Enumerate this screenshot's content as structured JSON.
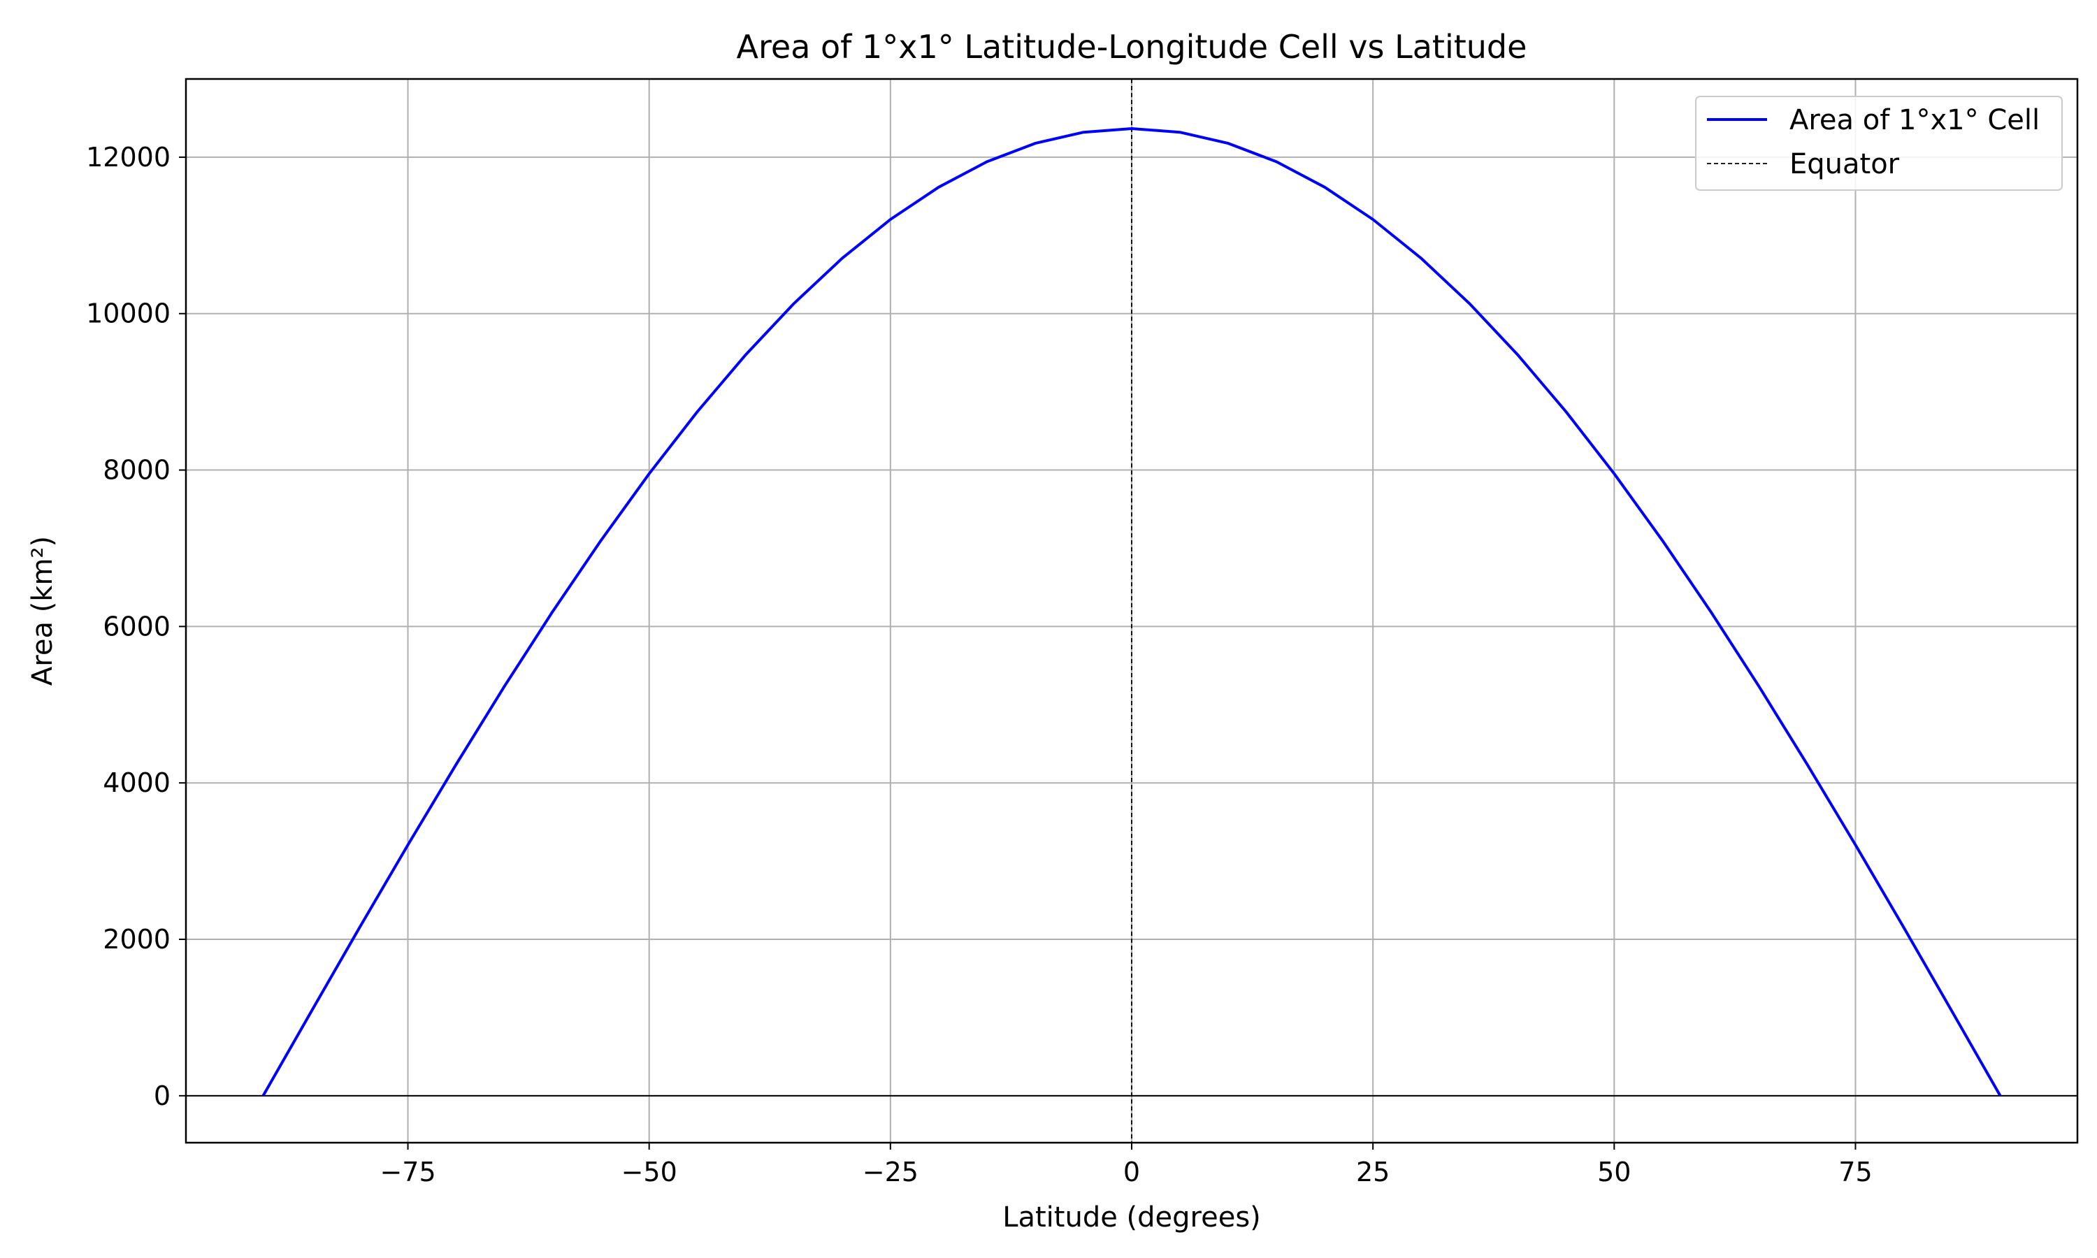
{
  "chart_data": {
    "type": "line",
    "title": "Area of 1°x1° Latitude-Longitude Cell vs Latitude",
    "xlabel": "Latitude (degrees)",
    "ylabel": "Area (km²)",
    "xlim": [
      -98,
      98
    ],
    "ylim": [
      -600,
      13000
    ],
    "x_ticks": [
      -75,
      -50,
      -25,
      0,
      25,
      50,
      75
    ],
    "x_tick_labels": [
      "−75",
      "−50",
      "−25",
      "0",
      "25",
      "50",
      "75"
    ],
    "y_ticks": [
      0,
      2000,
      4000,
      6000,
      8000,
      10000,
      12000
    ],
    "y_tick_labels": [
      "0",
      "2000",
      "4000",
      "6000",
      "8000",
      "10000",
      "12000"
    ],
    "grid": true,
    "legend_position": "top-right",
    "series": [
      {
        "name": "Area of 1°x1° Cell",
        "color": "#0000ff",
        "style": "solid",
        "x": [
          -90,
          -85,
          -80,
          -75,
          -70,
          -65,
          -60,
          -55,
          -50,
          -45,
          -40,
          -35,
          -30,
          -25,
          -20,
          -15,
          -10,
          -5,
          0,
          5,
          10,
          15,
          20,
          25,
          30,
          35,
          40,
          45,
          50,
          55,
          60,
          65,
          70,
          75,
          80,
          85,
          90
        ],
        "y": [
          0,
          1080,
          2152,
          3207,
          4237,
          5234,
          6190,
          7099,
          7953,
          8747,
          9474,
          10129,
          10707,
          11204,
          11617,
          11942,
          12177,
          12319,
          12366,
          12319,
          12177,
          11942,
          11617,
          11204,
          10707,
          10129,
          9474,
          8747,
          7953,
          7099,
          6190,
          5234,
          4237,
          3207,
          2152,
          1080,
          0
        ]
      }
    ],
    "reference_lines": [
      {
        "name": "Equator",
        "orientation": "vertical",
        "x": 0,
        "color": "#000000",
        "style": "dashed",
        "in_legend": true
      },
      {
        "orientation": "horizontal",
        "y": 0,
        "color": "#000000",
        "style": "solid",
        "in_legend": false
      }
    ]
  }
}
